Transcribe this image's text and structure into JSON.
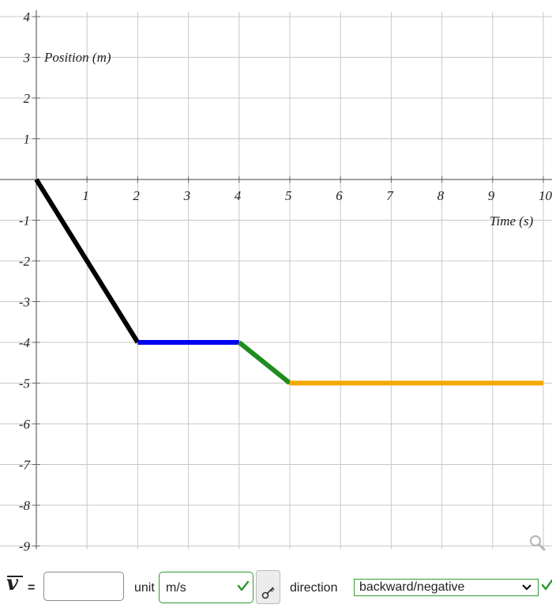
{
  "chart_data": {
    "type": "line",
    "xlabel": "Time (s)",
    "ylabel": "Position (m)",
    "xlim": [
      0,
      10
    ],
    "ylim": [
      -9,
      4
    ],
    "x_ticks": [
      "1",
      "2",
      "3",
      "4",
      "5",
      "6",
      "7",
      "8",
      "9",
      "10"
    ],
    "y_ticks": [
      "4",
      "3",
      "2",
      "1",
      "-1",
      "-2",
      "-3",
      "-4",
      "-5",
      "-6",
      "-7",
      "-8",
      "-9"
    ],
    "grid": true,
    "segments": [
      {
        "color": "#000000",
        "points": [
          [
            0,
            0
          ],
          [
            2,
            -4
          ]
        ]
      },
      {
        "color": "#0000ee",
        "points": [
          [
            2,
            -4
          ],
          [
            4,
            -4
          ]
        ]
      },
      {
        "color": "#1e8c1e",
        "points": [
          [
            4,
            -4
          ],
          [
            5,
            -5
          ]
        ]
      },
      {
        "color": "#f5a800",
        "points": [
          [
            5,
            -5
          ],
          [
            10,
            -5
          ]
        ]
      }
    ]
  },
  "controls": {
    "velocity_symbol": "v",
    "equals": "=",
    "velocity_value": "",
    "unit_label": "unit",
    "unit_value": "m/s",
    "direction_label": "direction",
    "direction_value": "backward/negative"
  },
  "icons": {
    "check": "check-icon",
    "key": "key-icon",
    "magnify": "magnify-icon",
    "chevron": "chevron-down-icon"
  },
  "colors": {
    "correct": "#2e9c2e",
    "grid": "#c8c8c8"
  }
}
